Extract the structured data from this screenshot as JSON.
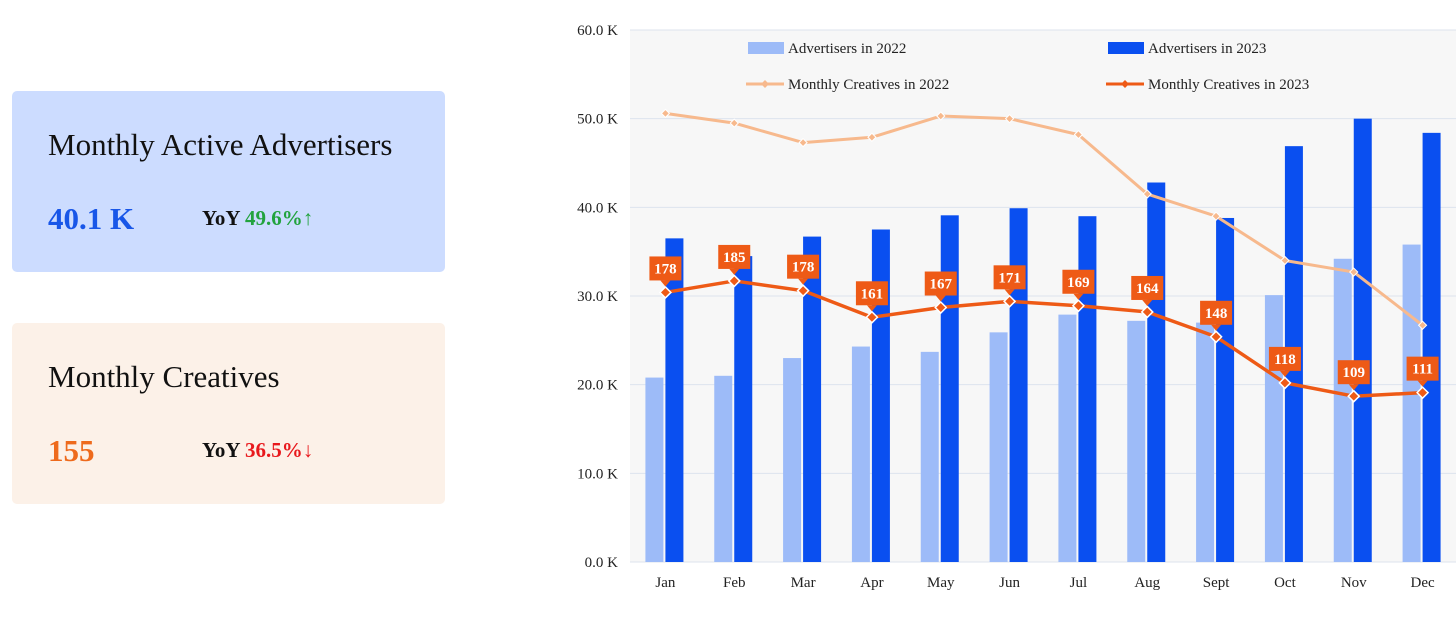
{
  "cards": {
    "advertisers": {
      "title": "Monthly Active Advertisers",
      "value": "40.1 K",
      "yoy_label": "YoY",
      "yoy_value": "49.6%↑",
      "color": "#1856e8"
    },
    "creatives": {
      "title": "Monthly Creatives",
      "value": "155",
      "yoy_label": "YoY",
      "yoy_value": "36.5%↓",
      "color": "#ee6a1c"
    }
  },
  "chart_data": {
    "type": "bar",
    "categories": [
      "Jan",
      "Feb",
      "Mar",
      "Apr",
      "May",
      "Jun",
      "Jul",
      "Aug",
      "Sept",
      "Oct",
      "Nov",
      "Dec"
    ],
    "yticks": [
      "0.0 K",
      "10.0 K",
      "20.0 K",
      "30.0 K",
      "40.0 K",
      "50.0 K",
      "60.0 K"
    ],
    "ylim": [
      0,
      60
    ],
    "grid": true,
    "legend_position": "top",
    "series": [
      {
        "name": "Advertisers in 2022",
        "kind": "bar",
        "color": "#9dbbf8",
        "values": [
          20.8,
          21.0,
          23.0,
          24.3,
          23.7,
          25.9,
          27.9,
          27.2,
          27.0,
          30.1,
          34.2,
          35.8
        ]
      },
      {
        "name": "Advertisers in 2023",
        "kind": "bar",
        "color": "#0a4ff0",
        "values": [
          36.5,
          34.5,
          36.7,
          37.5,
          39.1,
          39.9,
          39.0,
          42.8,
          38.8,
          46.9,
          50.0,
          48.4
        ]
      },
      {
        "name": "Monthly Creatives in 2022",
        "kind": "line",
        "color": "#f7b98d",
        "values": [
          50.6,
          49.5,
          47.3,
          47.9,
          50.3,
          50.0,
          48.2,
          41.5,
          39.0,
          34.0,
          32.7,
          26.7
        ]
      },
      {
        "name": "Monthly Creatives in 2023",
        "kind": "line",
        "color": "#ee5a16",
        "values": [
          30.4,
          31.7,
          30.6,
          27.6,
          28.7,
          29.4,
          28.9,
          28.2,
          25.4,
          20.2,
          18.7,
          19.1
        ],
        "labels": [
          "178",
          "185",
          "178",
          "161",
          "167",
          "171",
          "169",
          "164",
          "148",
          "118",
          "109",
          "111"
        ]
      }
    ]
  }
}
